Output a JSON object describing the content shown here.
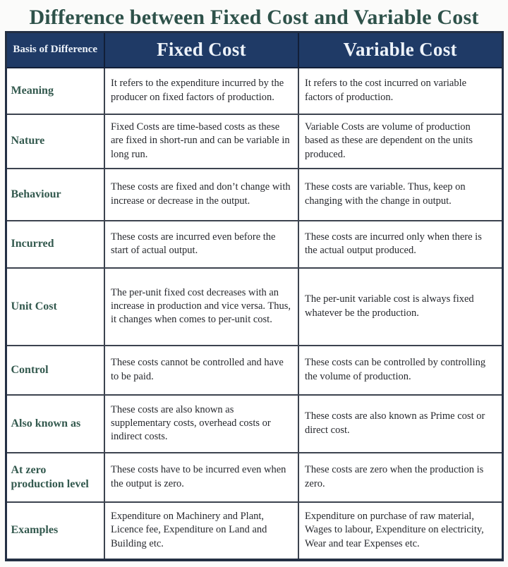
{
  "title": "Difference between Fixed Cost and Variable Cost",
  "table": {
    "headers": [
      "Basis of Difference",
      "Fixed Cost",
      "Variable Cost"
    ],
    "rows": [
      {
        "basis": "Meaning",
        "fixed": "It refers to the expenditure incurred by the producer on fixed factors of production.",
        "variable": "It refers to the cost incurred on variable factors of production."
      },
      {
        "basis": "Nature",
        "fixed": "Fixed Costs are time-based costs as these are fixed in short-run and can be variable in long run.",
        "variable": "Variable Costs are volume of production based as these are dependent on the units produced."
      },
      {
        "basis": "Behaviour",
        "fixed": "These costs are fixed and don’t change with increase or decrease in the output.",
        "variable": "These costs are variable. Thus, keep on changing with the change in output."
      },
      {
        "basis": "Incurred",
        "fixed": "These costs are incurred even before the start of actual output.",
        "variable": "These costs are incurred only when there is the actual output produced."
      },
      {
        "basis": "Unit Cost",
        "fixed": "The per-unit fixed cost decreases with an increase in production and vice versa. Thus, it changes when comes to per-unit cost.",
        "variable": "The per-unit variable cost is always fixed whatever be the production."
      },
      {
        "basis": "Control",
        "fixed": "These costs cannot be controlled and have to be paid.",
        "variable": "These costs can be controlled by controlling the volume of production."
      },
      {
        "basis": "Also known as",
        "fixed": "These costs are also known as supplementary costs, overhead costs or indirect costs.",
        "variable": "These costs are also known as Prime cost or direct cost."
      },
      {
        "basis": "At zero production level",
        "fixed": "These costs have to be incurred even when the output is zero.",
        "variable": "These costs are zero when the production is zero."
      },
      {
        "basis": "Examples",
        "fixed": "Expenditure on Machinery and Plant, Licence fee, Expenditure on Land and Building etc.",
        "variable": "Expenditure on purchase of raw material, Wages to labour, Expenditure on electricity, Wear and tear Expenses etc."
      }
    ]
  },
  "colors": {
    "header_bg": "#1f3a66",
    "header_text": "#eef3fa",
    "title_text": "#2e524a",
    "basis_label_text": "#33594e",
    "body_text": "#27292e",
    "inner_border": "#3c434f",
    "outer_border": "#232f43",
    "page_bg": "#fbfbfa"
  }
}
